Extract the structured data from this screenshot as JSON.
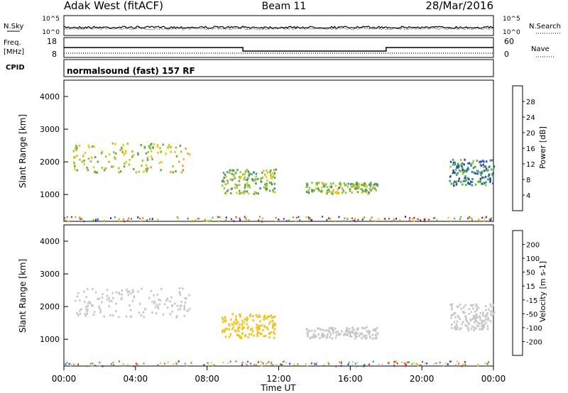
{
  "header": {
    "station": "Adak West (fitACF)",
    "beam": "Beam 11",
    "date": "28/Mar/2016"
  },
  "noise_panel": {
    "left_label": "N.Sky",
    "right_label": "N.Search",
    "ticks_left": [
      "10^5",
      "10^0"
    ],
    "ticks_right": [
      "10^5",
      "10^0"
    ]
  },
  "freq_panel": {
    "left_label_1": "Freq.",
    "left_label_2": "[MHz]",
    "ticks_left": [
      "18",
      "8"
    ],
    "right_label": "Nave",
    "ticks_right": [
      "60",
      "0"
    ]
  },
  "cpid_panel": {
    "label": "CPID",
    "mode": "normalsound (fast) 157 RF"
  },
  "x_axis": {
    "ticks": [
      "00:00",
      "04:00",
      "08:00",
      "12:00",
      "16:00",
      "20:00",
      "00:00"
    ],
    "label": "Time UT"
  },
  "power_panel": {
    "ylabel": "Slant Range [km]",
    "yticks": [
      "4000",
      "3000",
      "2000",
      "1000"
    ],
    "colorbar_label": "Power [dB]",
    "colorbar_ticks": [
      "28",
      "24",
      "20",
      "16",
      "12",
      "8",
      "4"
    ],
    "colors": [
      "#1515e6",
      "#234fa8",
      "#3a8f8a",
      "#5fb03c",
      "#a3c43a",
      "#f2c21a",
      "#f0a416",
      "#ee6f12",
      "#e03a10",
      "#d41414"
    ]
  },
  "velocity_panel": {
    "ylabel": "Slant Range [km]",
    "yticks": [
      "4000",
      "3000",
      "2000",
      "1000"
    ],
    "colorbar_label": "Velocity [m s-1]",
    "colorbar_ticks": [
      "200",
      "100",
      "50",
      "15",
      "-15",
      "-50",
      "-100",
      "-200"
    ],
    "colors": [
      "#1a3fd6",
      "#2a6fb0",
      "#3c9a6a",
      "#62c23a",
      "#c8c8c8",
      "#c8c8c8",
      "#f2c21a",
      "#f09a16",
      "#ea6412",
      "#e0261a"
    ]
  },
  "chart_data": {
    "type": "heatmap",
    "x_range_hours": [
      0,
      24
    ],
    "y_range_km": [
      180,
      4500
    ],
    "frequency_mhz": [
      {
        "start_hour": 0,
        "end_hour": 10,
        "value": 13
      },
      {
        "start_hour": 10,
        "end_hour": 18,
        "value": 10.5
      },
      {
        "start_hour": 18,
        "end_hour": 24,
        "value": 13
      }
    ],
    "echo_regions": [
      {
        "start_hour": 0.5,
        "end_hour": 7.0,
        "range_km": [
          1700,
          2600
        ],
        "power_db": 14,
        "velocity": -5
      },
      {
        "start_hour": 8.8,
        "end_hour": 11.8,
        "range_km": [
          1050,
          1800
        ],
        "power_db": 12,
        "velocity": -60
      },
      {
        "start_hour": 13.5,
        "end_hour": 17.5,
        "range_km": [
          1050,
          1400
        ],
        "power_db": 12,
        "velocity": 10
      },
      {
        "start_hour": 21.5,
        "end_hour": 24.0,
        "range_km": [
          1300,
          2100
        ],
        "power_db": 8,
        "velocity": -5
      }
    ]
  }
}
